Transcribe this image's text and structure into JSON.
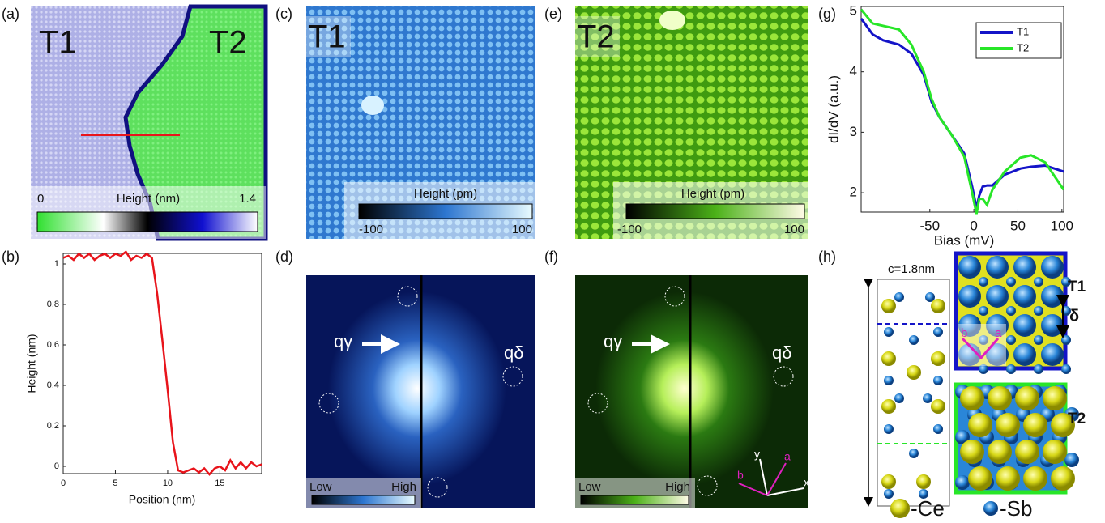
{
  "panels": {
    "a": {
      "label": "(a)",
      "t1": "T1",
      "t2": "T2",
      "cb_min": "0",
      "cb_title": "Height (nm)",
      "cb_max": "1.4"
    },
    "c": {
      "label": "(c)",
      "tag": "T1",
      "cb_title": "Height (pm)",
      "cb_min": "-100",
      "cb_max": "100"
    },
    "e": {
      "label": "(e)",
      "tag": "T2",
      "cb_title": "Height (pm)",
      "cb_min": "-100",
      "cb_max": "100"
    },
    "d": {
      "label": "(d)",
      "q_gamma": "qγ",
      "q_delta": "qδ",
      "cb_low": "Low",
      "cb_high": "High"
    },
    "f": {
      "label": "(f)",
      "q_gamma": "qγ",
      "q_delta": "qδ",
      "cb_low": "Low",
      "cb_high": "High",
      "axis_b": "b",
      "axis_y": "y",
      "axis_a": "a",
      "axis_x": "x"
    },
    "h": {
      "label": "(h)",
      "c_len": "c=1.8nm",
      "t1": "T1",
      "delta": "δ",
      "b": "b",
      "a": "a",
      "t2": "T2",
      "ce": "-Ce",
      "sb": "-Sb"
    },
    "b": {
      "label": "(b)"
    },
    "g": {
      "label": "(g)"
    }
  },
  "chart_data": [
    {
      "type": "line",
      "xlabel": "Position (nm)",
      "ylabel": "Height (nm)",
      "x": [
        0,
        0.5,
        1,
        1.5,
        2,
        2.5,
        3,
        3.5,
        4,
        4.5,
        5,
        5.5,
        6,
        6.5,
        7,
        7.5,
        8,
        8.5,
        9,
        9.5,
        10,
        10.5,
        11,
        11.5,
        12,
        12.5,
        13,
        13.5,
        14,
        14.5,
        15,
        15.5,
        16,
        16.5,
        17,
        17.5,
        18,
        18.5,
        19
      ],
      "series": [
        {
          "name": "profile",
          "color": "#e8141b",
          "values": [
            1.03,
            1.04,
            1.02,
            1.05,
            1.03,
            1.05,
            1.02,
            1.04,
            1.05,
            1.03,
            1.05,
            1.04,
            1.06,
            1.02,
            1.04,
            1.03,
            1.05,
            1.03,
            0.85,
            0.62,
            0.38,
            0.12,
            -0.02,
            -0.03,
            -0.02,
            -0.01,
            -0.03,
            -0.01,
            -0.04,
            -0.01,
            0.0,
            -0.02,
            0.03,
            -0.01,
            0.02,
            -0.01,
            0.02,
            0.0,
            0.01
          ]
        }
      ],
      "xlim": [
        0,
        19
      ],
      "ylim": [
        -0.036,
        1.052
      ],
      "xticks": [
        0,
        5,
        10,
        15
      ],
      "yticks": [
        0,
        0.2,
        0.4,
        0.6,
        0.8,
        1
      ]
    },
    {
      "type": "line",
      "xlabel": "Bias (mV)",
      "ylabel": "dI/dV (a.u.)",
      "x": [
        -128,
        -115,
        -103,
        -85,
        -71,
        -57,
        -48,
        -39,
        -25,
        -11,
        -2,
        3,
        6,
        10,
        15,
        21,
        35,
        53,
        65,
        81,
        102
      ],
      "series": [
        {
          "name": "T1",
          "color": "#1414c8",
          "values": [
            4.88,
            4.62,
            4.52,
            4.45,
            4.3,
            3.95,
            3.5,
            3.25,
            2.95,
            2.65,
            2.1,
            1.75,
            1.95,
            2.1,
            2.12,
            2.12,
            2.3,
            2.4,
            2.43,
            2.45,
            2.35
          ]
        },
        {
          "name": "T2",
          "color": "#28e628",
          "values": [
            5.03,
            4.8,
            4.76,
            4.7,
            4.45,
            4.0,
            3.55,
            3.25,
            2.95,
            2.6,
            2.0,
            1.65,
            1.9,
            1.9,
            1.8,
            2.05,
            2.35,
            2.58,
            2.62,
            2.5,
            2.05
          ]
        }
      ],
      "xlim": [
        -128,
        102
      ],
      "ylim": [
        1.68,
        5.08
      ],
      "xticks": [
        -50,
        0,
        50,
        100
      ],
      "yticks": [
        2,
        3,
        4,
        5
      ],
      "legend": "top-right"
    }
  ]
}
